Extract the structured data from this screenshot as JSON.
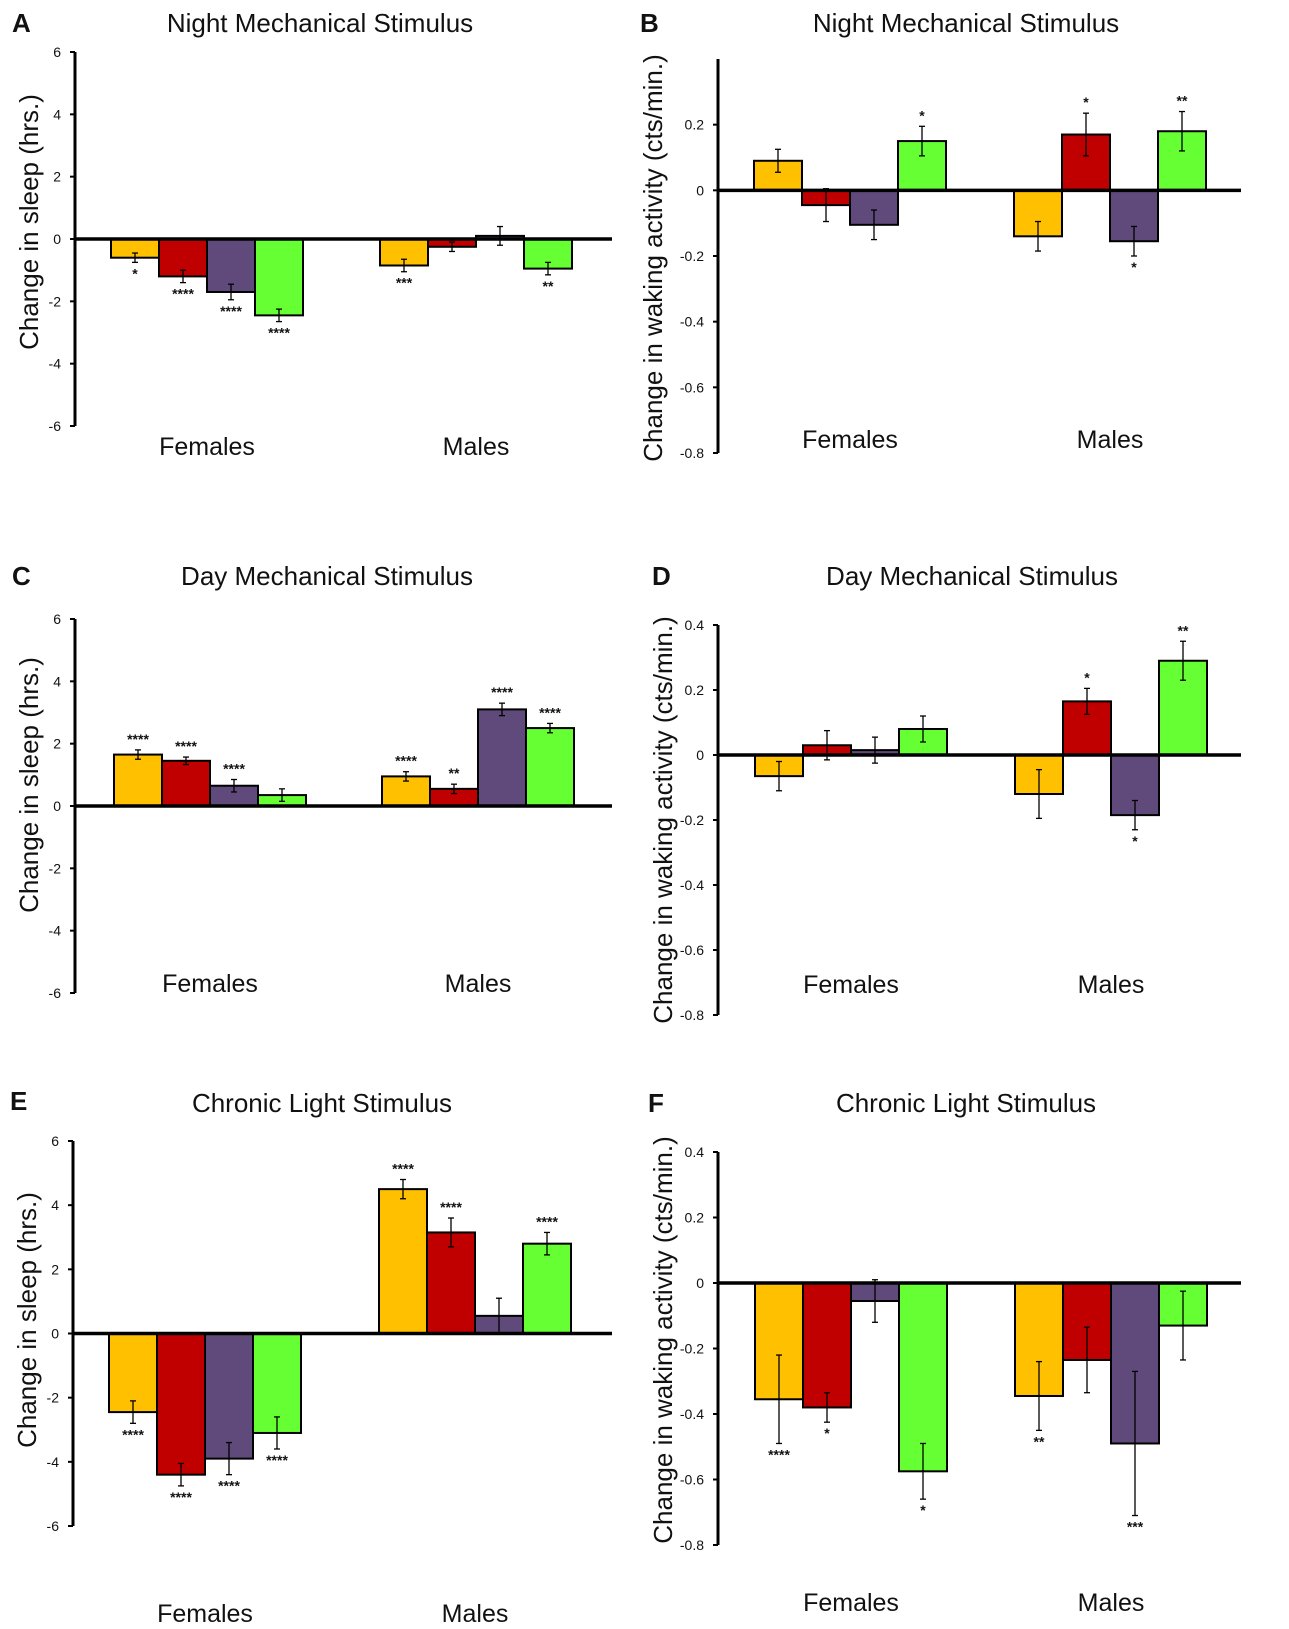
{
  "colors": {
    "series": [
      "#FFC000",
      "#C00000",
      "#604A7B",
      "#66FF33"
    ],
    "axis": "#000000",
    "bar_outline": "#000000"
  },
  "chart_data": [
    {
      "panel": "A",
      "type": "bar",
      "title": "Night Mechanical Stimulus",
      "ylabel": "Change in sleep (hrs.)",
      "xlabel": "",
      "categories": [
        "Females",
        "Males"
      ],
      "ylim": [
        -6,
        6
      ],
      "yticks": [
        "6",
        "4",
        "2",
        "0",
        "-2",
        "-4",
        "-6"
      ],
      "grid": false,
      "series": [
        {
          "values": [
            -0.6,
            -0.85
          ],
          "errors": [
            0.15,
            0.2
          ],
          "sig": [
            "*",
            "***"
          ]
        },
        {
          "values": [
            -1.2,
            -0.25
          ],
          "errors": [
            0.2,
            0.15
          ],
          "sig": [
            "****",
            ""
          ]
        },
        {
          "values": [
            -1.7,
            0.1
          ],
          "errors": [
            0.25,
            0.3
          ],
          "sig": [
            "****",
            ""
          ]
        },
        {
          "values": [
            -2.45,
            -0.95
          ],
          "errors": [
            0.2,
            0.2
          ],
          "sig": [
            "****",
            "**"
          ]
        }
      ]
    },
    {
      "panel": "B",
      "type": "bar",
      "title": "Night Mechanical Stimulus",
      "ylabel": "Change in waking activity (cts/min.)",
      "xlabel": "",
      "categories": [
        "Females",
        "Males"
      ],
      "ylim": [
        -0.8,
        0.4
      ],
      "yticks": [
        "0.2",
        "0",
        "-0.2",
        "-0.4",
        "-0.6",
        "-0.8"
      ],
      "grid": false,
      "series": [
        {
          "values": [
            0.09,
            -0.14
          ],
          "errors": [
            0.035,
            0.045
          ],
          "sig": [
            "",
            ""
          ]
        },
        {
          "values": [
            -0.045,
            0.17
          ],
          "errors": [
            0.05,
            0.065
          ],
          "sig": [
            "",
            "*"
          ]
        },
        {
          "values": [
            -0.105,
            -0.155
          ],
          "errors": [
            0.045,
            0.045
          ],
          "sig": [
            "",
            "*"
          ]
        },
        {
          "values": [
            0.15,
            0.18
          ],
          "errors": [
            0.045,
            0.06
          ],
          "sig": [
            "*",
            "**"
          ]
        }
      ]
    },
    {
      "panel": "C",
      "type": "bar",
      "title": "Day Mechanical Stimulus",
      "ylabel": "Change in sleep (hrs.)",
      "xlabel": "",
      "categories": [
        "Females",
        "Males"
      ],
      "ylim": [
        -6,
        6
      ],
      "yticks": [
        "6",
        "4",
        "2",
        "0",
        "-2",
        "-4",
        "-6"
      ],
      "grid": false,
      "series": [
        {
          "values": [
            1.65,
            0.95
          ],
          "errors": [
            0.15,
            0.15
          ],
          "sig": [
            "****",
            "****"
          ]
        },
        {
          "values": [
            1.45,
            0.55
          ],
          "errors": [
            0.12,
            0.15
          ],
          "sig": [
            "****",
            "**"
          ]
        },
        {
          "values": [
            0.65,
            3.1
          ],
          "errors": [
            0.2,
            0.2
          ],
          "sig": [
            "****",
            "****"
          ]
        },
        {
          "values": [
            0.35,
            2.5
          ],
          "errors": [
            0.2,
            0.15
          ],
          "sig": [
            "",
            "****"
          ]
        }
      ]
    },
    {
      "panel": "D",
      "type": "bar",
      "title": "Day Mechanical Stimulus",
      "ylabel": "Change in waking activity (cts/min.)",
      "xlabel": "",
      "categories": [
        "Females",
        "Males"
      ],
      "ylim": [
        -0.8,
        0.4
      ],
      "yticks": [
        "0.4",
        "0.2",
        "0",
        "-0.2",
        "-0.4",
        "-0.6",
        "-0.8"
      ],
      "grid": false,
      "series": [
        {
          "values": [
            -0.065,
            -0.12
          ],
          "errors": [
            0.045,
            0.075
          ],
          "sig": [
            "",
            ""
          ]
        },
        {
          "values": [
            0.03,
            0.165
          ],
          "errors": [
            0.045,
            0.04
          ],
          "sig": [
            "",
            "*"
          ]
        },
        {
          "values": [
            0.015,
            -0.185
          ],
          "errors": [
            0.04,
            0.045
          ],
          "sig": [
            "",
            "*"
          ]
        },
        {
          "values": [
            0.08,
            0.29
          ],
          "errors": [
            0.04,
            0.06
          ],
          "sig": [
            "",
            "**"
          ]
        }
      ]
    },
    {
      "panel": "E",
      "type": "bar",
      "title": "Chronic Light Stimulus",
      "ylabel": "Change in sleep (hrs.)",
      "xlabel": "",
      "categories": [
        "Females",
        "Males"
      ],
      "ylim": [
        -6,
        6
      ],
      "yticks": [
        "6",
        "4",
        "2",
        "0",
        "-2",
        "-4",
        "-6"
      ],
      "grid": false,
      "series": [
        {
          "values": [
            -2.45,
            4.5
          ],
          "errors": [
            0.35,
            0.3
          ],
          "sig": [
            "****",
            "****"
          ]
        },
        {
          "values": [
            -4.4,
            3.15
          ],
          "errors": [
            0.35,
            0.45
          ],
          "sig": [
            "****",
            "****"
          ]
        },
        {
          "values": [
            -3.9,
            0.55
          ],
          "errors": [
            0.5,
            0.55
          ],
          "sig": [
            "****",
            ""
          ]
        },
        {
          "values": [
            -3.1,
            2.8
          ],
          "errors": [
            0.5,
            0.35
          ],
          "sig": [
            "****",
            "****"
          ]
        }
      ]
    },
    {
      "panel": "F",
      "type": "bar",
      "title": "Chronic Light Stimulus",
      "ylabel": "Change in waking activity (cts/min.)",
      "xlabel": "",
      "categories": [
        "Females",
        "Males"
      ],
      "ylim": [
        -0.8,
        0.4
      ],
      "yticks": [
        "0.4",
        "0.2",
        "0",
        "-0.2",
        "-0.4",
        "-0.6",
        "-0.8"
      ],
      "grid": false,
      "series": [
        {
          "values": [
            -0.355,
            -0.345
          ],
          "errors": [
            0.135,
            0.105
          ],
          "sig": [
            "****",
            "**"
          ]
        },
        {
          "values": [
            -0.38,
            -0.235
          ],
          "errors": [
            0.045,
            0.1
          ],
          "sig": [
            "*",
            ""
          ]
        },
        {
          "values": [
            -0.055,
            -0.49
          ],
          "errors": [
            0.065,
            0.22
          ],
          "sig": [
            "",
            "***"
          ]
        },
        {
          "values": [
            -0.575,
            -0.13
          ],
          "errors": [
            0.085,
            0.105
          ],
          "sig": [
            "*",
            ""
          ]
        }
      ]
    }
  ]
}
